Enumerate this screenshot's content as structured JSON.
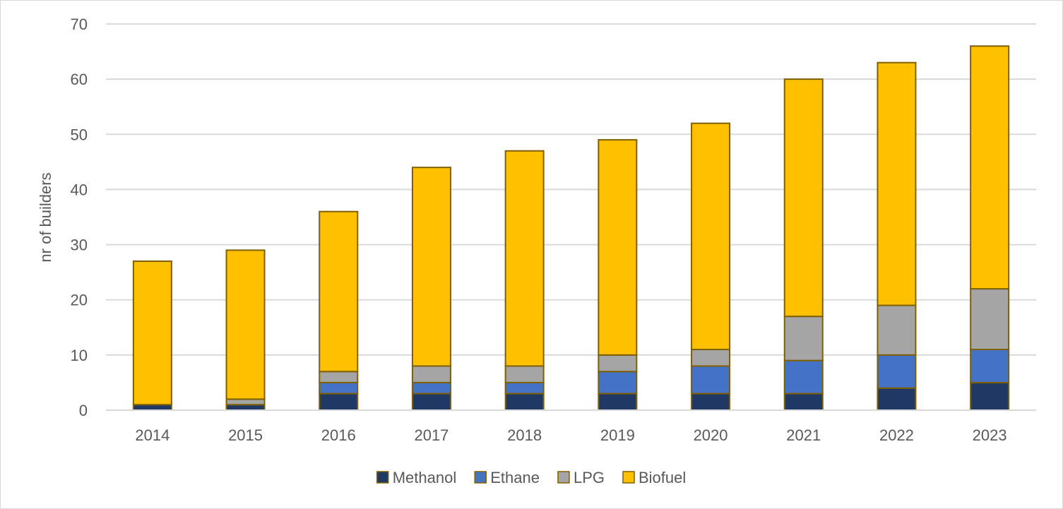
{
  "chart_data": {
    "type": "bar",
    "stacked": true,
    "title": "",
    "xlabel": "",
    "ylabel": "nr of builders",
    "ylim": [
      0,
      70
    ],
    "yticks": [
      0,
      10,
      20,
      30,
      40,
      50,
      60,
      70
    ],
    "grid": true,
    "legend_position": "bottom",
    "categories": [
      "2014",
      "2015",
      "2016",
      "2017",
      "2018",
      "2019",
      "2020",
      "2021",
      "2022",
      "2023"
    ],
    "series": [
      {
        "name": "Methanol",
        "color": "#1f3864",
        "values": [
          1,
          1,
          3,
          3,
          3,
          3,
          3,
          3,
          4,
          5
        ]
      },
      {
        "name": "Ethane",
        "color": "#4472c4",
        "values": [
          0,
          0,
          2,
          2,
          2,
          4,
          5,
          6,
          6,
          6
        ]
      },
      {
        "name": "LPG",
        "color": "#a5a5a5",
        "values": [
          0,
          1,
          2,
          3,
          3,
          3,
          3,
          8,
          9,
          11
        ]
      },
      {
        "name": "Biofuel",
        "color": "#ffc000",
        "values": [
          26,
          27,
          29,
          36,
          39,
          39,
          41,
          43,
          44,
          44
        ]
      }
    ],
    "bar_outline_color": "#7f6000",
    "gridline_color": "#d9d9d9",
    "text_color": "#595959"
  }
}
